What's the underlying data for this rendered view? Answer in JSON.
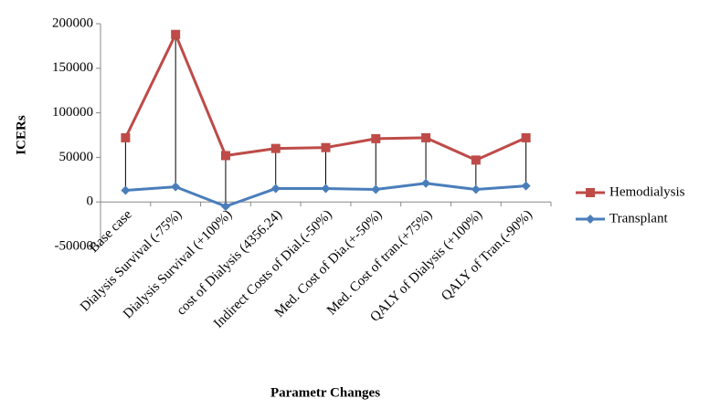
{
  "chart_data": {
    "type": "line",
    "y_label": "ICERs",
    "x_label": "Parametr Changes",
    "categories": [
      "Base case",
      "Dialysis Survival (-75%)",
      "Dialysis Survival (+100%)",
      "cost of Dialysis (4356.24)",
      "Indirect Costs of Dial.(-50%)",
      "Med. Cost  of Dia.(+-50%)",
      "Med. Cost of tran.(+75%)",
      "QALY of Dialysis (+100%)",
      "QALY of Tran.(-90%)"
    ],
    "series": [
      {
        "name": "Hemodialysis",
        "color": "#be4b48",
        "marker": "square",
        "values": [
          72000,
          188000,
          52000,
          60000,
          61000,
          71000,
          72000,
          47000,
          72000
        ]
      },
      {
        "name": "Transplant",
        "color": "#4a7ebb",
        "marker": "diamond",
        "values": [
          13000,
          17000,
          -5000,
          15000,
          15000,
          14000,
          21000,
          14000,
          18000
        ]
      }
    ],
    "ylim": [
      -50000,
      200000
    ],
    "yticks": [
      -50000,
      0,
      50000,
      100000,
      150000,
      200000
    ],
    "high_low_lines": true,
    "legend": "right"
  }
}
